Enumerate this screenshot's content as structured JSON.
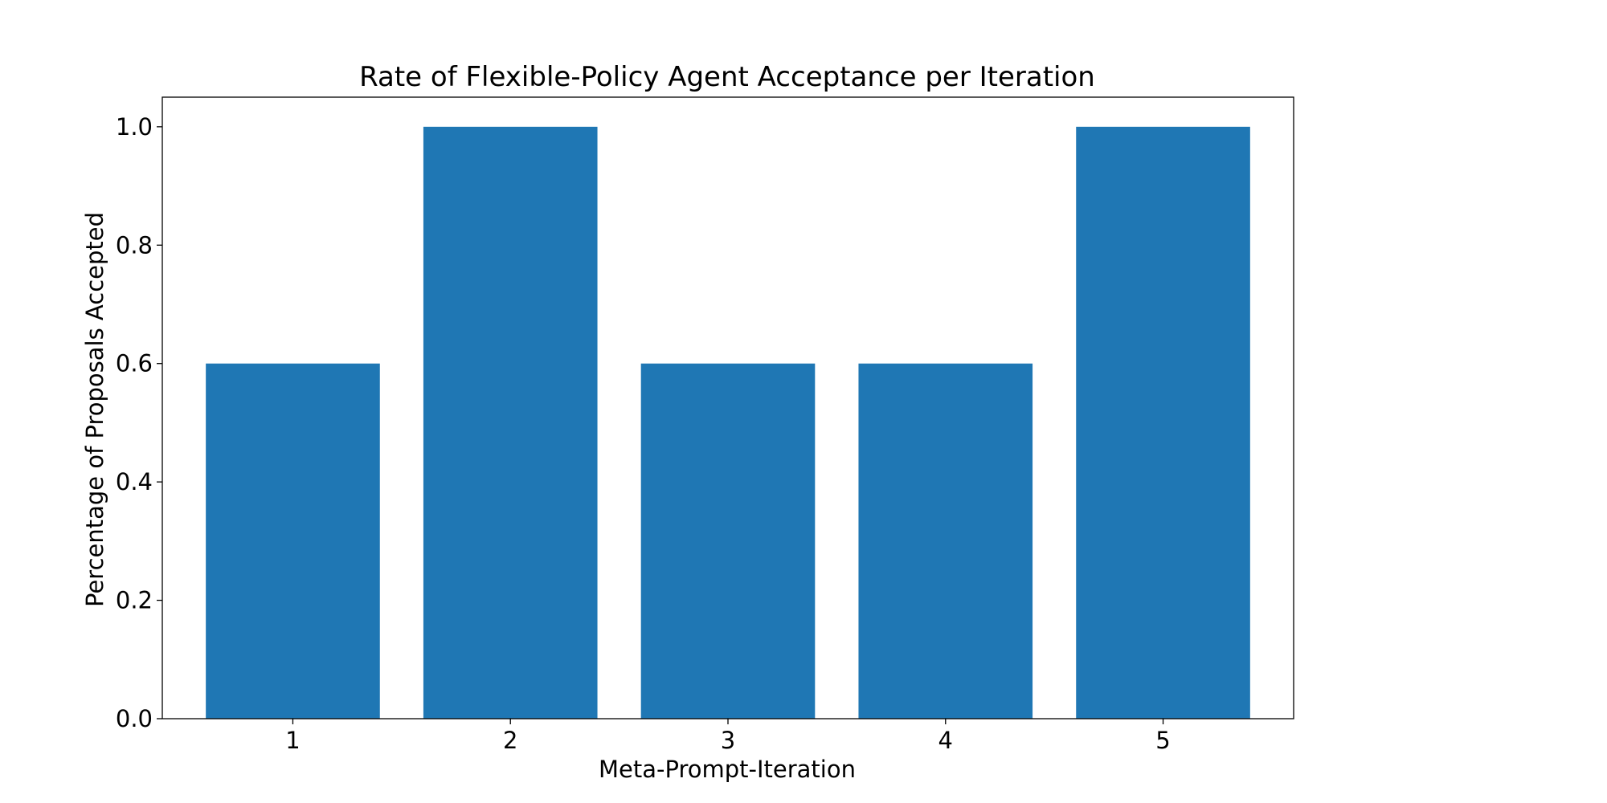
{
  "colors": {
    "bar": "#1f77b4",
    "axes": "#000000",
    "background": "#ffffff"
  },
  "chart_data": {
    "type": "bar",
    "title": "Rate of Flexible-Policy Agent Acceptance per Iteration",
    "xlabel": "Meta-Prompt-Iteration",
    "ylabel": "Percentage of Proposals Accepted",
    "categories": [
      "1",
      "2",
      "3",
      "4",
      "5"
    ],
    "values": [
      0.6,
      1.0,
      0.6,
      0.6,
      1.0
    ],
    "ylim": [
      0,
      1.05
    ],
    "yticks": [
      "0.0",
      "0.2",
      "0.4",
      "0.6",
      "0.8",
      "1.0"
    ],
    "grid": false,
    "legend": "none"
  }
}
